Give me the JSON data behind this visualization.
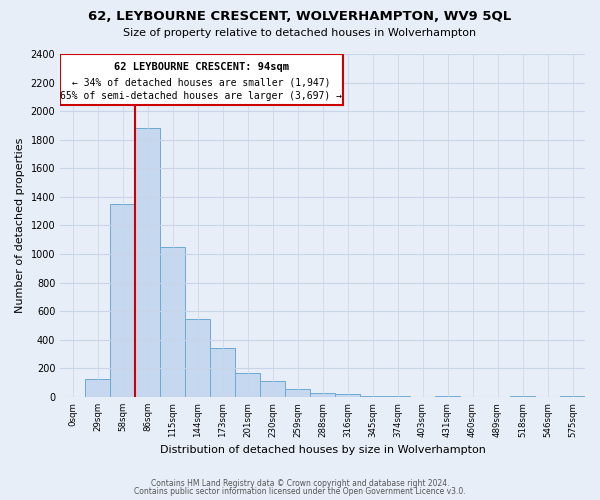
{
  "title": "62, LEYBOURNE CRESCENT, WOLVERHAMPTON, WV9 5QL",
  "subtitle": "Size of property relative to detached houses in Wolverhampton",
  "xlabel": "Distribution of detached houses by size in Wolverhampton",
  "ylabel": "Number of detached properties",
  "bar_labels": [
    "0sqm",
    "29sqm",
    "58sqm",
    "86sqm",
    "115sqm",
    "144sqm",
    "173sqm",
    "201sqm",
    "230sqm",
    "259sqm",
    "288sqm",
    "316sqm",
    "345sqm",
    "374sqm",
    "403sqm",
    "431sqm",
    "460sqm",
    "489sqm",
    "518sqm",
    "546sqm",
    "575sqm"
  ],
  "bar_heights": [
    0,
    125,
    1350,
    1880,
    1050,
    545,
    340,
    165,
    110,
    55,
    25,
    20,
    10,
    5,
    0,
    5,
    0,
    0,
    5,
    0,
    5
  ],
  "bar_color": "#c5d8f0",
  "bar_edge_color": "#6aaad4",
  "annotation_title": "62 LEYBOURNE CRESCENT: 94sqm",
  "annotation_line1": "← 34% of detached houses are smaller (1,947)",
  "annotation_line2": "65% of semi-detached houses are larger (3,697) →",
  "ylim": [
    0,
    2400
  ],
  "yticks": [
    0,
    200,
    400,
    600,
    800,
    1000,
    1200,
    1400,
    1600,
    1800,
    2000,
    2200,
    2400
  ],
  "footer1": "Contains HM Land Registry data © Crown copyright and database right 2024.",
  "footer2": "Contains public sector information licensed under the Open Government Licence v3.0.",
  "bg_color": "#e8eef8",
  "grid_color": "#c8d4e8"
}
